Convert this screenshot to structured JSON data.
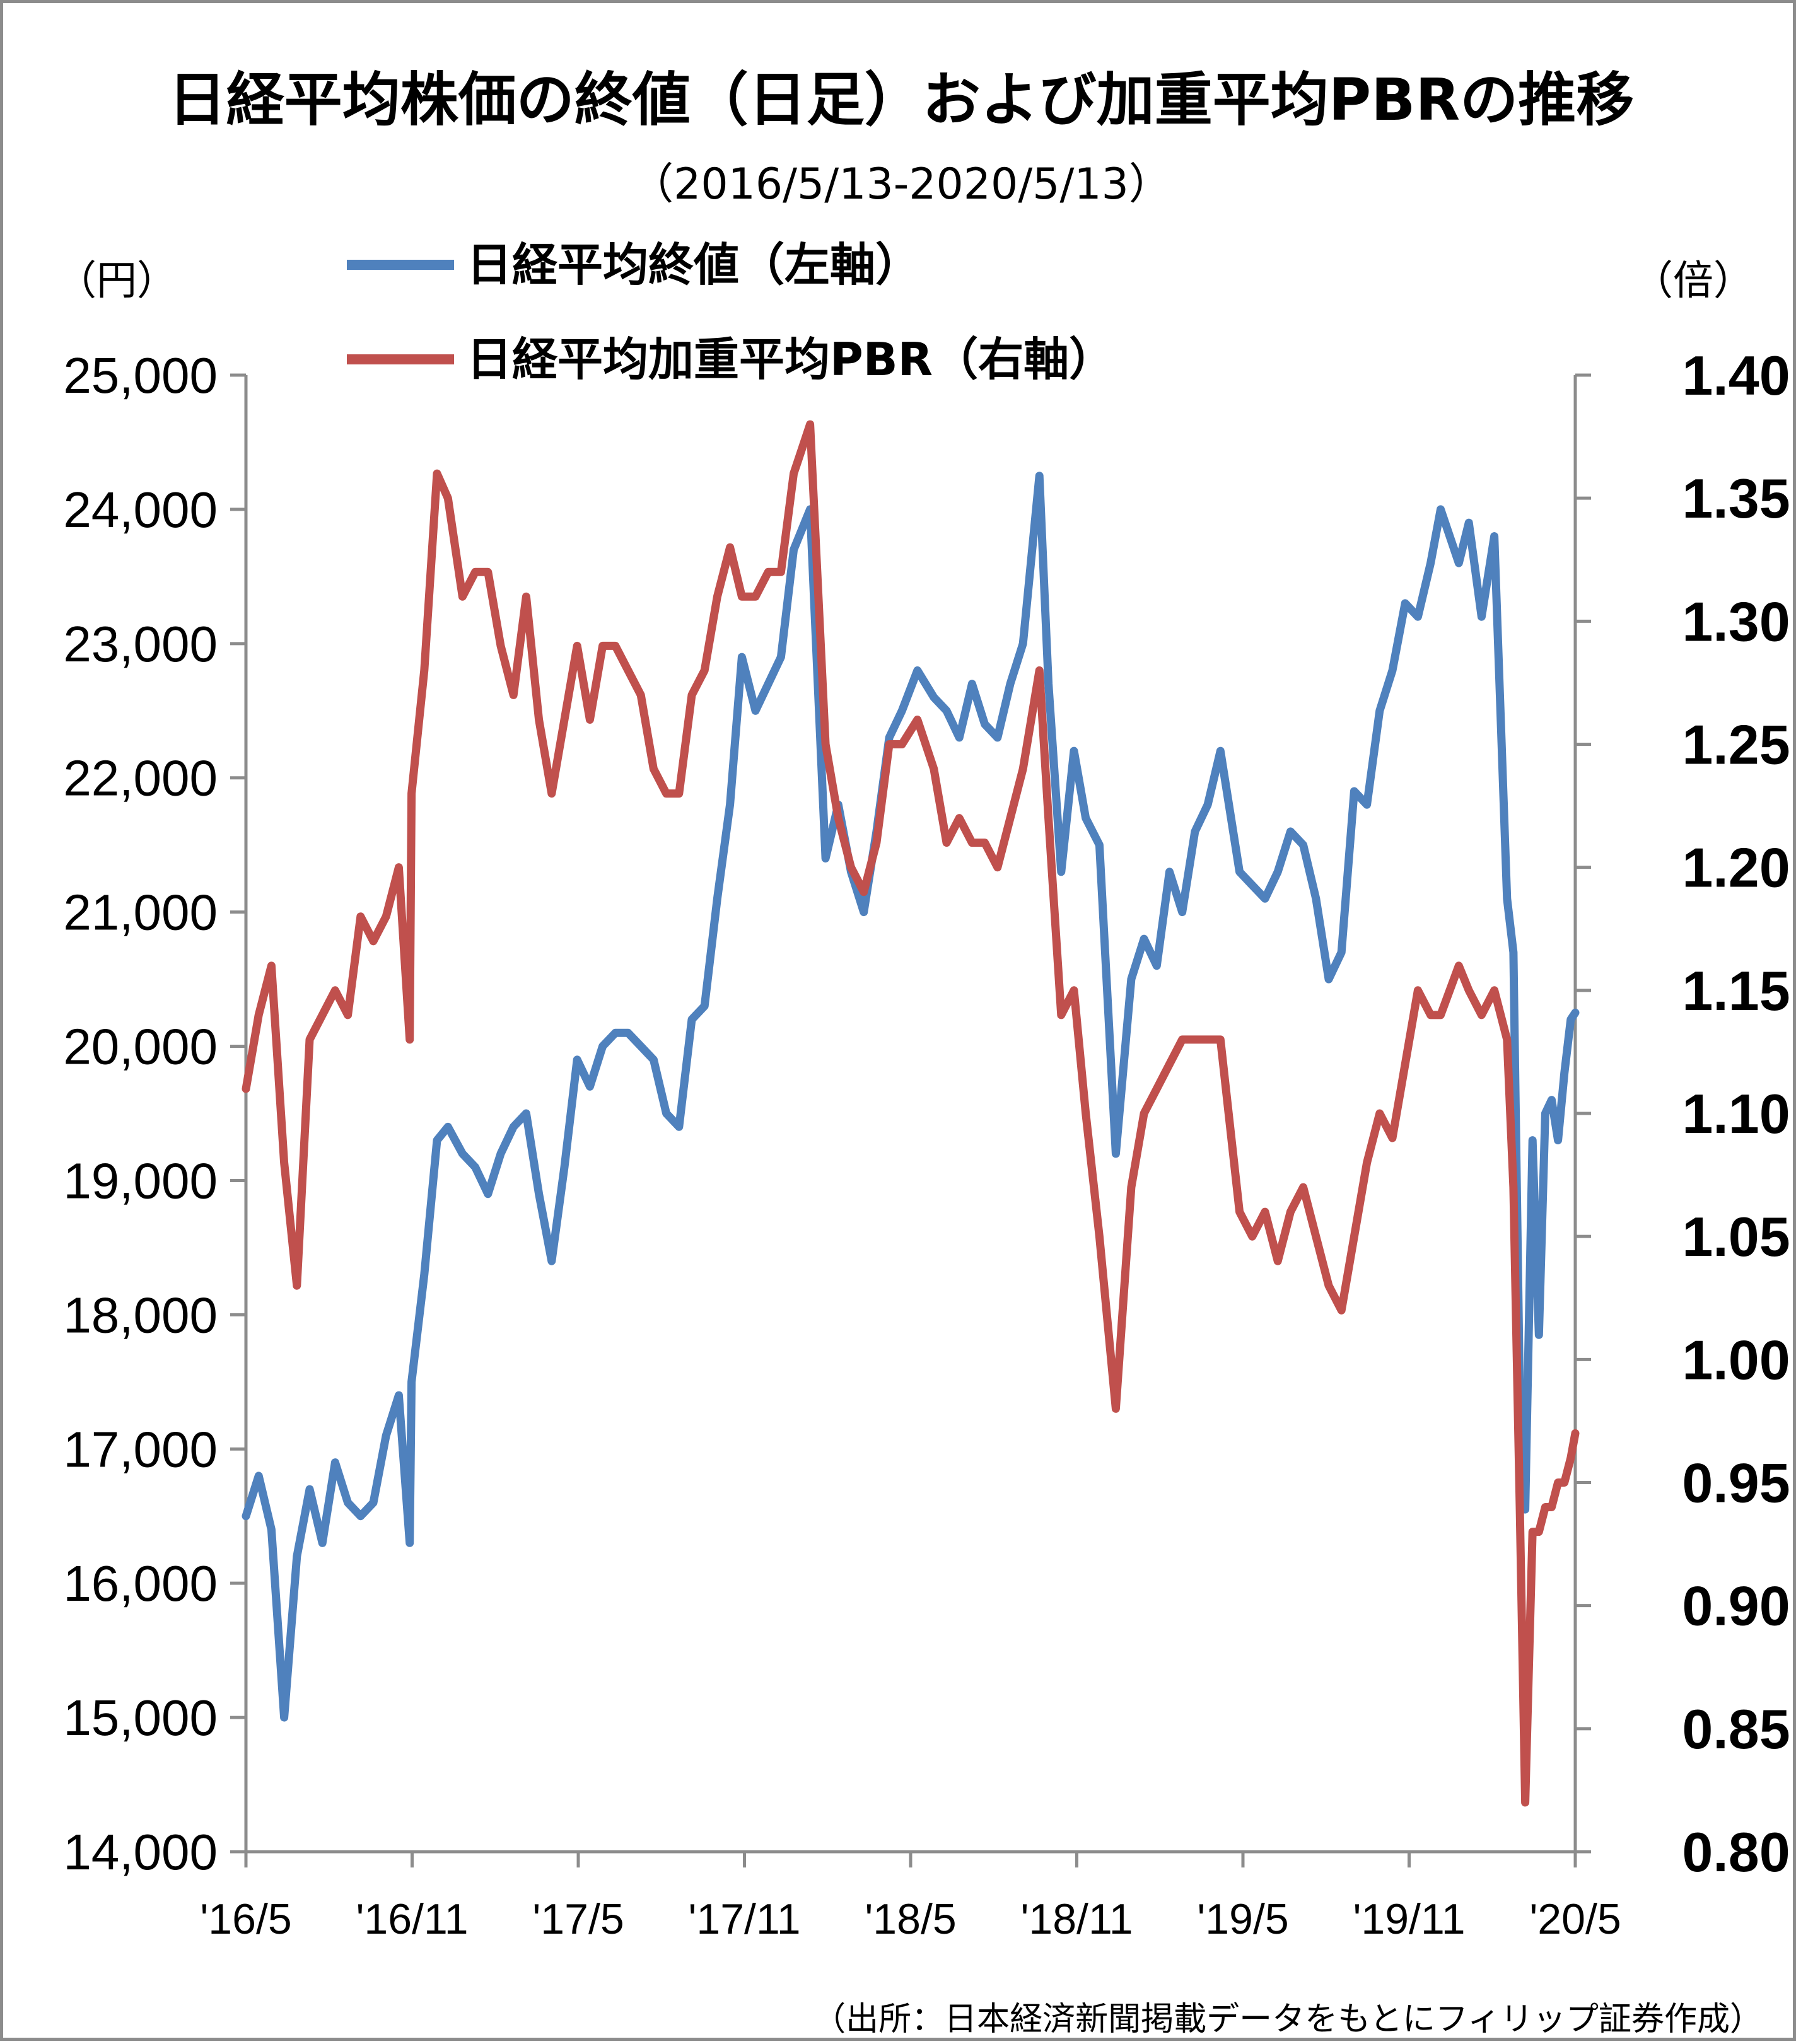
{
  "chart_data": {
    "type": "line",
    "title": "日経平均株価の終値（日足）および加重平均PBRの推移",
    "subtitle": "（2016/5/13-2020/5/13）",
    "left_axis": {
      "unit": "（円）",
      "ylim": [
        14000,
        25000
      ],
      "ticks": [
        "14,000",
        "15,000",
        "16,000",
        "17,000",
        "18,000",
        "19,000",
        "20,000",
        "21,000",
        "22,000",
        "23,000",
        "24,000",
        "25,000"
      ],
      "tick_values": [
        14000,
        15000,
        16000,
        17000,
        18000,
        19000,
        20000,
        21000,
        22000,
        23000,
        24000,
        25000
      ]
    },
    "right_axis": {
      "unit": "（倍）",
      "ylim": [
        0.8,
        1.4
      ],
      "ticks": [
        "0.80",
        "0.85",
        "0.90",
        "0.95",
        "1.00",
        "1.05",
        "1.10",
        "1.15",
        "1.20",
        "1.25",
        "1.30",
        "1.35",
        "1.40"
      ],
      "tick_values": [
        0.8,
        0.85,
        0.9,
        0.95,
        1.0,
        1.05,
        1.1,
        1.15,
        1.2,
        1.25,
        1.3,
        1.35,
        1.4
      ]
    },
    "x_axis": {
      "range": [
        "2016-05-13",
        "2020-05-13"
      ],
      "ticks": [
        "'16/5",
        "'16/11",
        "'17/5",
        "'17/11",
        "'18/5",
        "'18/11",
        "'19/5",
        "'19/11",
        "'20/5"
      ],
      "tick_dates": [
        "2016-05",
        "2016-11",
        "2017-05",
        "2017-11",
        "2018-05",
        "2018-11",
        "2019-05",
        "2019-11",
        "2020-05"
      ]
    },
    "legend_position": "top-left",
    "grid": false,
    "series": [
      {
        "name": "日経平均終値（左軸）",
        "axis": "left",
        "color": "#4f81bd",
        "x": [
          "2016-05-13",
          "2016-05-27",
          "2016-06-10",
          "2016-06-24",
          "2016-07-08",
          "2016-07-22",
          "2016-08-05",
          "2016-08-19",
          "2016-09-02",
          "2016-09-16",
          "2016-09-30",
          "2016-10-14",
          "2016-10-28",
          "2016-11-09",
          "2016-11-11",
          "2016-11-25",
          "2016-12-09",
          "2016-12-21",
          "2017-01-06",
          "2017-01-20",
          "2017-02-03",
          "2017-02-17",
          "2017-03-03",
          "2017-03-17",
          "2017-03-31",
          "2017-04-14",
          "2017-04-28",
          "2017-05-12",
          "2017-05-26",
          "2017-06-09",
          "2017-06-23",
          "2017-07-07",
          "2017-07-21",
          "2017-08-04",
          "2017-08-18",
          "2017-09-01",
          "2017-09-15",
          "2017-09-29",
          "2017-10-13",
          "2017-10-27",
          "2017-11-09",
          "2017-11-24",
          "2017-12-08",
          "2017-12-22",
          "2018-01-05",
          "2018-01-23",
          "2018-02-09",
          "2018-02-23",
          "2018-03-09",
          "2018-03-23",
          "2018-04-06",
          "2018-04-20",
          "2018-05-04",
          "2018-05-21",
          "2018-06-08",
          "2018-06-22",
          "2018-07-06",
          "2018-07-20",
          "2018-08-03",
          "2018-08-17",
          "2018-08-31",
          "2018-09-14",
          "2018-10-02",
          "2018-10-12",
          "2018-10-26",
          "2018-11-09",
          "2018-11-22",
          "2018-12-07",
          "2018-12-25",
          "2019-01-11",
          "2019-01-25",
          "2019-02-08",
          "2019-02-22",
          "2019-03-08",
          "2019-03-22",
          "2019-04-05",
          "2019-04-19",
          "2019-05-10",
          "2019-05-24",
          "2019-06-07",
          "2019-06-21",
          "2019-07-05",
          "2019-07-19",
          "2019-08-02",
          "2019-08-16",
          "2019-08-30",
          "2019-09-13",
          "2019-09-27",
          "2019-10-11",
          "2019-10-25",
          "2019-11-08",
          "2019-11-22",
          "2019-12-06",
          "2019-12-17",
          "2020-01-06",
          "2020-01-17",
          "2020-01-31",
          "2020-02-14",
          "2020-02-28",
          "2020-03-06",
          "2020-03-13",
          "2020-03-19",
          "2020-03-27",
          "2020-04-03",
          "2020-04-10",
          "2020-04-17",
          "2020-04-24",
          "2020-05-01",
          "2020-05-08",
          "2020-05-13"
        ],
        "values": [
          16500,
          16800,
          16400,
          15000,
          16200,
          16700,
          16300,
          16900,
          16600,
          16500,
          16600,
          17100,
          17400,
          16300,
          17500,
          18300,
          19300,
          19400,
          19200,
          19100,
          18900,
          19200,
          19400,
          19500,
          18900,
          18400,
          19100,
          19900,
          19700,
          20000,
          20100,
          20100,
          20000,
          19900,
          19500,
          19400,
          20200,
          20300,
          21100,
          21800,
          22900,
          22500,
          22700,
          22900,
          23700,
          24000,
          21400,
          21800,
          21300,
          21000,
          21600,
          22300,
          22500,
          22800,
          22600,
          22500,
          22300,
          22700,
          22400,
          22300,
          22700,
          23000,
          24250,
          22700,
          21300,
          22200,
          21700,
          21500,
          19200,
          20500,
          20800,
          20600,
          21300,
          21000,
          21600,
          21800,
          22200,
          21300,
          21200,
          21100,
          21300,
          21600,
          21500,
          21100,
          20500,
          20700,
          21900,
          21800,
          22500,
          22800,
          23300,
          23200,
          23600,
          24000,
          23600,
          23900,
          23200,
          23800,
          21100,
          20700,
          17400,
          16550,
          19300,
          17850,
          19500,
          19600,
          19300,
          19800,
          20200,
          20250
        ]
      },
      {
        "name": "日経平均加重平均PBR（右軸）",
        "axis": "right",
        "color": "#c0504d",
        "x": [
          "2016-05-13",
          "2016-05-27",
          "2016-06-10",
          "2016-06-24",
          "2016-07-08",
          "2016-07-22",
          "2016-08-05",
          "2016-08-19",
          "2016-09-02",
          "2016-09-16",
          "2016-09-30",
          "2016-10-14",
          "2016-10-28",
          "2016-11-09",
          "2016-11-11",
          "2016-11-25",
          "2016-12-09",
          "2016-12-21",
          "2017-01-06",
          "2017-01-20",
          "2017-02-03",
          "2017-02-17",
          "2017-03-03",
          "2017-03-17",
          "2017-03-31",
          "2017-04-14",
          "2017-04-28",
          "2017-05-12",
          "2017-05-26",
          "2017-06-09",
          "2017-06-23",
          "2017-07-07",
          "2017-07-21",
          "2017-08-04",
          "2017-08-18",
          "2017-09-01",
          "2017-09-15",
          "2017-09-29",
          "2017-10-13",
          "2017-10-27",
          "2017-11-09",
          "2017-11-24",
          "2017-12-08",
          "2017-12-22",
          "2018-01-05",
          "2018-01-23",
          "2018-02-09",
          "2018-02-23",
          "2018-03-09",
          "2018-03-23",
          "2018-04-06",
          "2018-04-20",
          "2018-05-04",
          "2018-05-21",
          "2018-06-08",
          "2018-06-22",
          "2018-07-06",
          "2018-07-20",
          "2018-08-03",
          "2018-08-17",
          "2018-08-31",
          "2018-09-14",
          "2018-10-02",
          "2018-10-12",
          "2018-10-26",
          "2018-11-09",
          "2018-11-22",
          "2018-12-07",
          "2018-12-25",
          "2019-01-11",
          "2019-01-25",
          "2019-02-08",
          "2019-02-22",
          "2019-03-08",
          "2019-03-22",
          "2019-04-05",
          "2019-04-19",
          "2019-05-10",
          "2019-05-24",
          "2019-06-07",
          "2019-06-21",
          "2019-07-05",
          "2019-07-19",
          "2019-08-02",
          "2019-08-16",
          "2019-08-30",
          "2019-09-13",
          "2019-09-27",
          "2019-10-11",
          "2019-10-25",
          "2019-11-08",
          "2019-11-22",
          "2019-12-06",
          "2019-12-17",
          "2020-01-06",
          "2020-01-17",
          "2020-01-31",
          "2020-02-14",
          "2020-02-28",
          "2020-03-06",
          "2020-03-13",
          "2020-03-19",
          "2020-03-27",
          "2020-04-03",
          "2020-04-10",
          "2020-04-17",
          "2020-04-24",
          "2020-05-01",
          "2020-05-08",
          "2020-05-13"
        ],
        "values": [
          1.11,
          1.14,
          1.16,
          1.08,
          1.03,
          1.13,
          1.14,
          1.15,
          1.14,
          1.18,
          1.17,
          1.18,
          1.2,
          1.13,
          1.23,
          1.28,
          1.36,
          1.35,
          1.31,
          1.32,
          1.32,
          1.29,
          1.27,
          1.31,
          1.26,
          1.23,
          1.26,
          1.29,
          1.26,
          1.29,
          1.29,
          1.28,
          1.27,
          1.24,
          1.23,
          1.23,
          1.27,
          1.28,
          1.31,
          1.33,
          1.31,
          1.31,
          1.32,
          1.32,
          1.36,
          1.38,
          1.25,
          1.22,
          1.2,
          1.19,
          1.21,
          1.25,
          1.25,
          1.26,
          1.24,
          1.21,
          1.22,
          1.21,
          1.21,
          1.2,
          1.22,
          1.24,
          1.28,
          1.22,
          1.14,
          1.15,
          1.1,
          1.05,
          0.98,
          1.07,
          1.1,
          1.11,
          1.12,
          1.13,
          1.13,
          1.13,
          1.13,
          1.06,
          1.05,
          1.06,
          1.04,
          1.06,
          1.07,
          1.05,
          1.03,
          1.02,
          1.05,
          1.08,
          1.1,
          1.09,
          1.12,
          1.15,
          1.14,
          1.14,
          1.16,
          1.15,
          1.14,
          1.15,
          1.13,
          1.07,
          0.94,
          0.82,
          0.93,
          0.93,
          0.94,
          0.94,
          0.95,
          0.95,
          0.96,
          0.97
        ]
      }
    ]
  },
  "source": "（出所：日本経済新聞掲載データをもとにフィリップ証券作成）"
}
